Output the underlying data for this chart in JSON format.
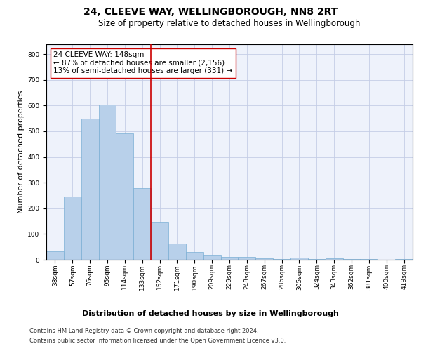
{
  "title": "24, CLEEVE WAY, WELLINGBOROUGH, NN8 2RT",
  "subtitle": "Size of property relative to detached houses in Wellingborough",
  "xlabel": "Distribution of detached houses by size in Wellingborough",
  "ylabel": "Number of detached properties",
  "categories": [
    "38sqm",
    "57sqm",
    "76sqm",
    "95sqm",
    "114sqm",
    "133sqm",
    "152sqm",
    "171sqm",
    "190sqm",
    "209sqm",
    "229sqm",
    "248sqm",
    "267sqm",
    "286sqm",
    "305sqm",
    "324sqm",
    "343sqm",
    "362sqm",
    "381sqm",
    "400sqm",
    "419sqm"
  ],
  "values": [
    32,
    246,
    549,
    603,
    493,
    278,
    147,
    62,
    30,
    18,
    12,
    12,
    5,
    4,
    7,
    4,
    6,
    2,
    4,
    1,
    4
  ],
  "bar_color": "#b8d0ea",
  "bar_edge_color": "#7aafd4",
  "vline_x": 5.5,
  "vline_color": "#cc0000",
  "annotation_text": "24 CLEEVE WAY: 148sqm\n← 87% of detached houses are smaller (2,156)\n13% of semi-detached houses are larger (331) →",
  "annotation_box_color": "#ffffff",
  "annotation_box_edge": "#cc0000",
  "ylim": [
    0,
    840
  ],
  "yticks": [
    0,
    100,
    200,
    300,
    400,
    500,
    600,
    700,
    800
  ],
  "footer_line1": "Contains HM Land Registry data © Crown copyright and database right 2024.",
  "footer_line2": "Contains public sector information licensed under the Open Government Licence v3.0.",
  "background_color": "#eef2fb",
  "grid_color": "#c5cde6",
  "title_fontsize": 10,
  "subtitle_fontsize": 8.5,
  "ylabel_fontsize": 8,
  "xlabel_fontsize": 8,
  "tick_fontsize": 6.5,
  "annotation_fontsize": 7.5,
  "footer_fontsize": 6
}
